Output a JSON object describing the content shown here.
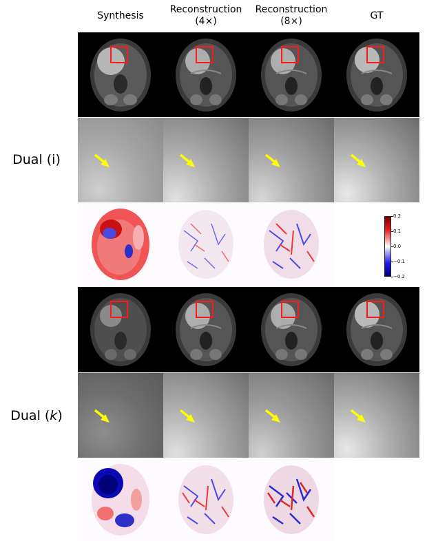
{
  "columns": [
    {
      "line1": "Synthesis",
      "line2": ""
    },
    {
      "line1": "Reconstruction",
      "line2": "(4×)"
    },
    {
      "line1": "Reconstruction",
      "line2": "(8×)"
    },
    {
      "line1": "GT",
      "line2": ""
    }
  ],
  "rows": [
    {
      "label_main": "Dual (i)",
      "label_var": ""
    },
    {
      "label_main": "Dual (",
      "label_var": "k",
      "label_end": ")"
    }
  ],
  "colorbar": {
    "ticks": [
      "0.2",
      "0.1",
      "0.0",
      "−0.1",
      "−0.2"
    ],
    "colors": {
      "max": "#7a0000",
      "mid": "#ffffff",
      "min": "#00007a"
    }
  },
  "markers": {
    "roi_box_color": "#ff1a1a",
    "arrow_color": "#ffff00"
  }
}
